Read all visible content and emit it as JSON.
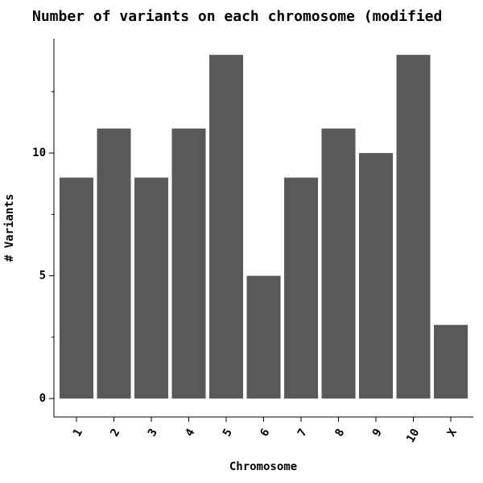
{
  "chart_data": {
    "type": "bar",
    "title": "Number of variants on each chromosome (modified",
    "x_label": "Chromosome",
    "y_label": "# Variants",
    "categories": [
      "1",
      "2",
      "3",
      "4",
      "5",
      "6",
      "7",
      "8",
      "9",
      "10",
      "X"
    ],
    "values": [
      9,
      11,
      9,
      11,
      14,
      5,
      9,
      11,
      10,
      14,
      3
    ],
    "color": "#595959",
    "ylim": [
      -0.75,
      14.66
    ],
    "yticks": [
      0,
      5,
      10
    ],
    "minor_yticks": [
      2.5,
      7.5,
      12.5
    ]
  }
}
